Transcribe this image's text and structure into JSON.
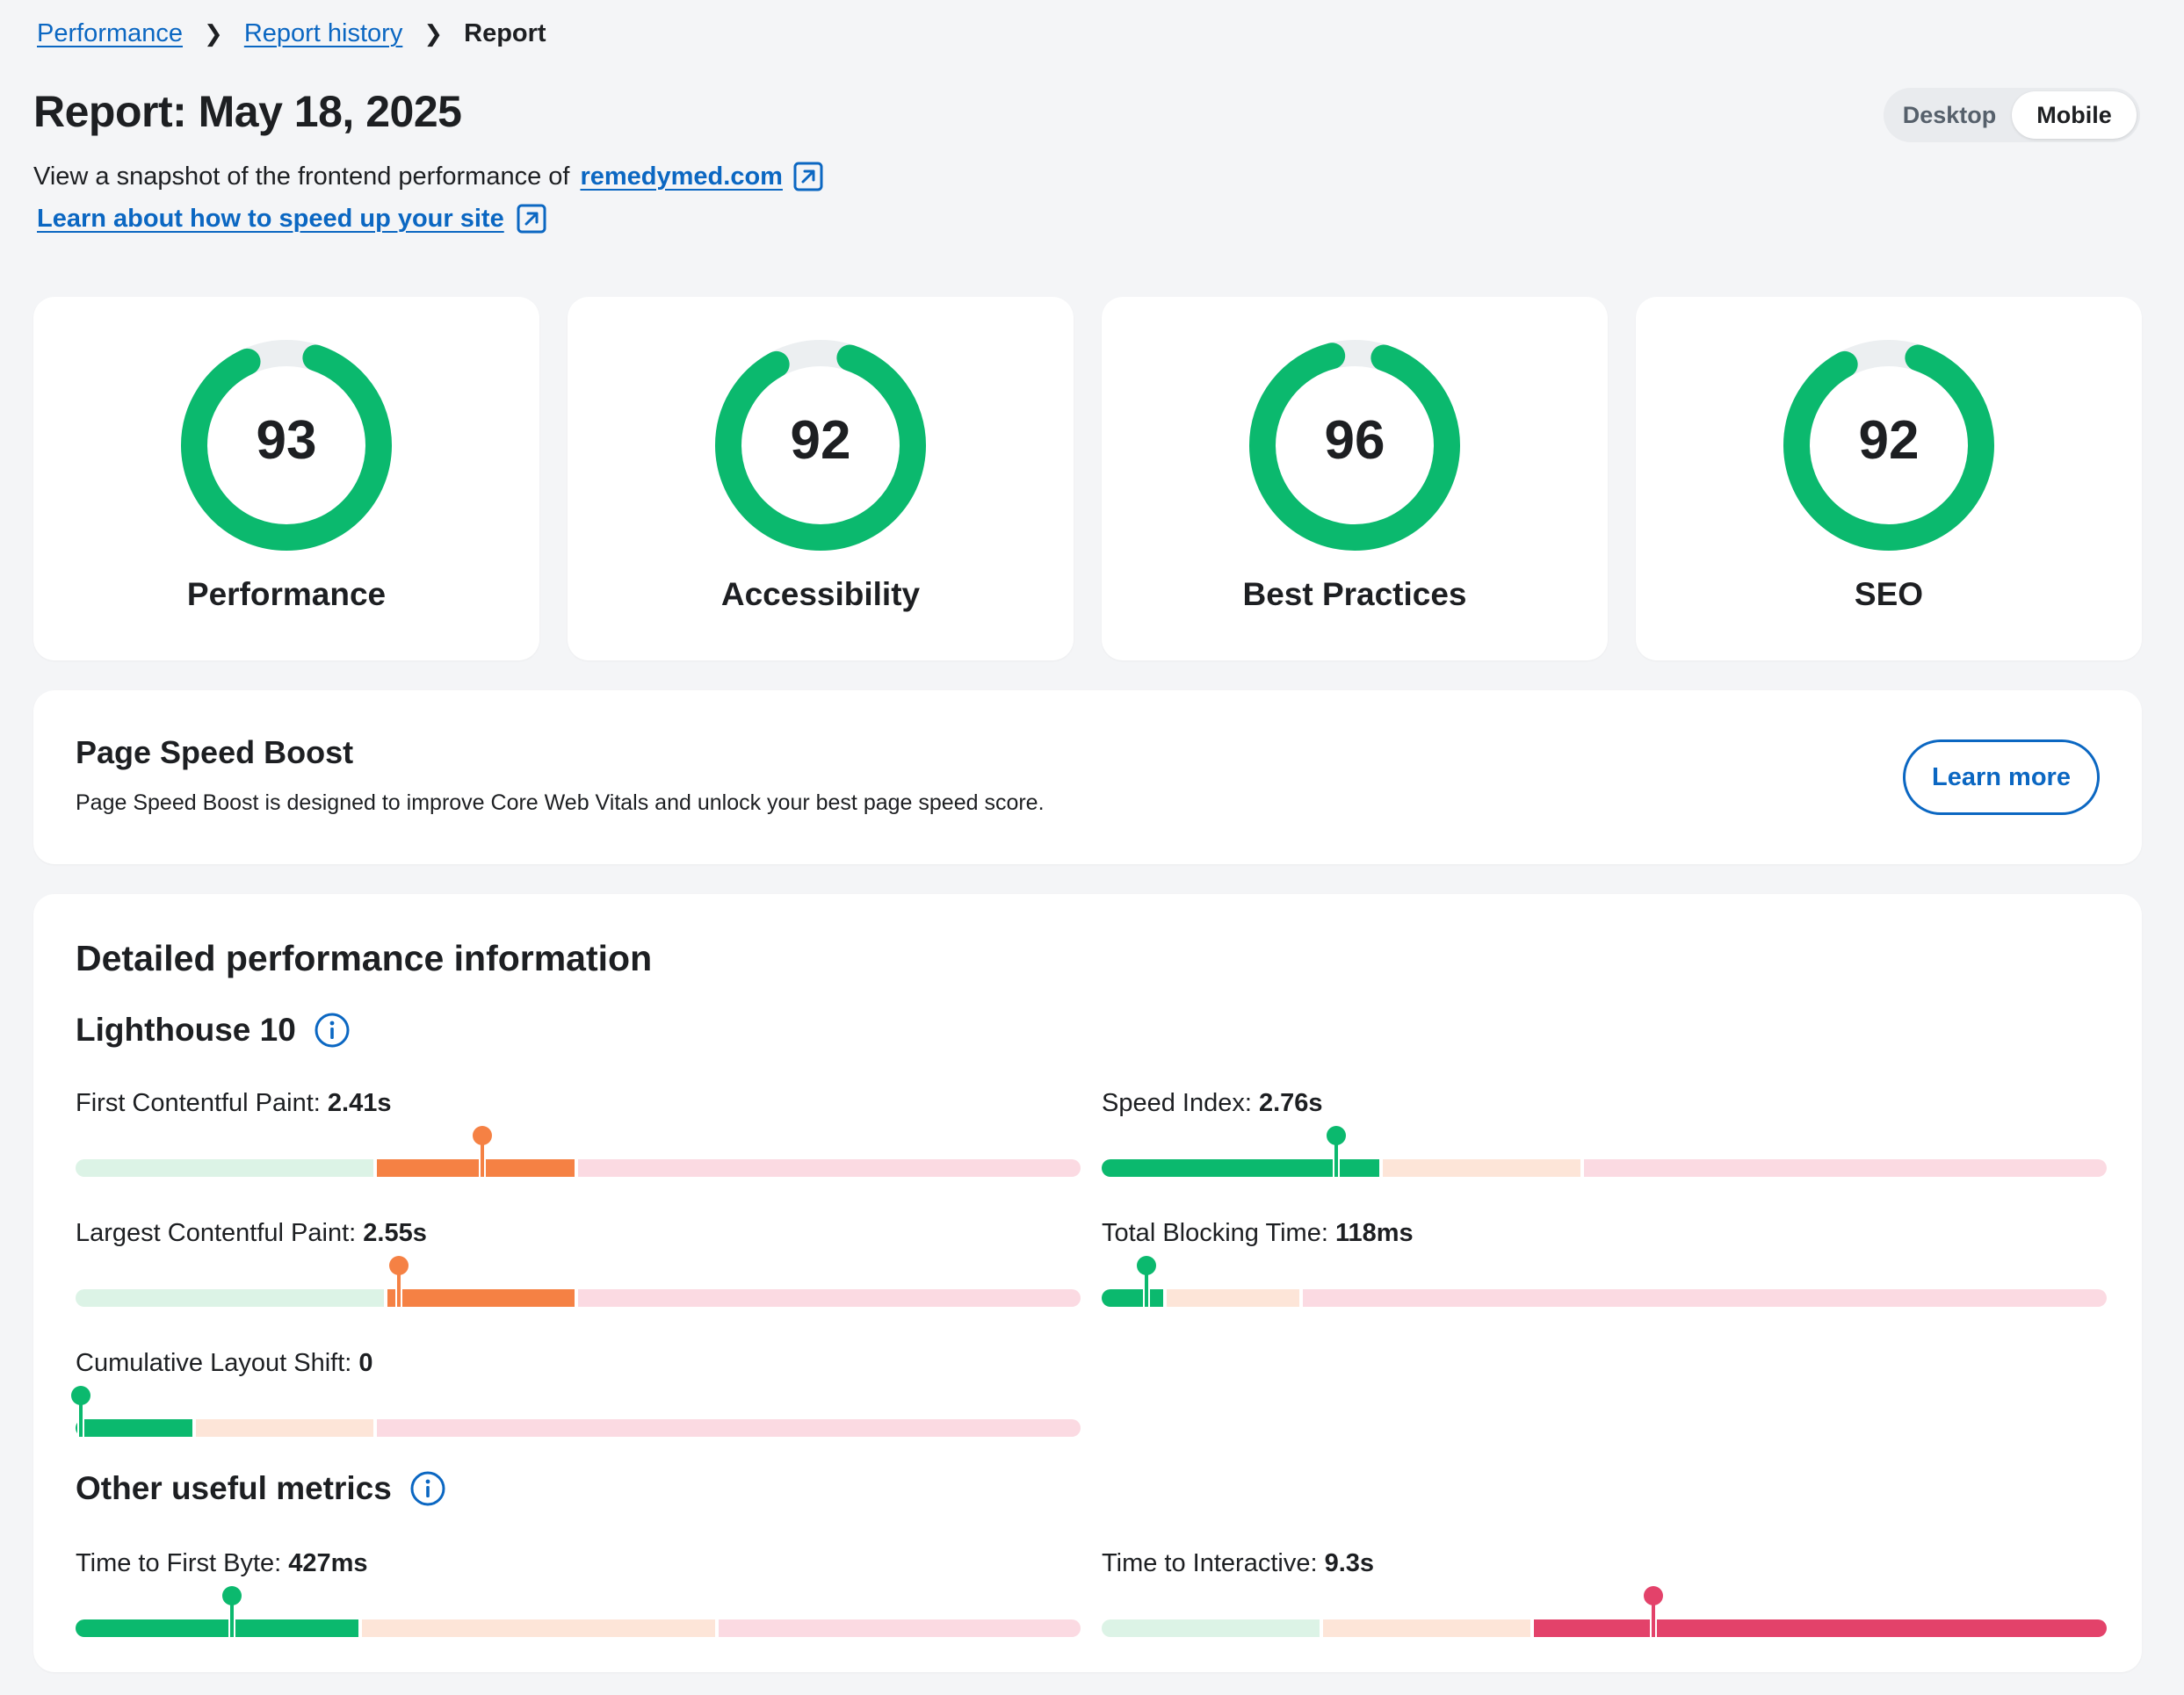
{
  "breadcrumb": {
    "items": [
      "Performance",
      "Report history"
    ],
    "current": "Report"
  },
  "header": {
    "title": "Report: May 18, 2025",
    "snapshot_text": "View a snapshot of the frontend performance of",
    "site_link": "remedymed.com",
    "learn_link": "Learn about how to speed up your site"
  },
  "device_toggle": {
    "options": [
      "Desktop",
      "Mobile"
    ],
    "selected": "Mobile"
  },
  "scores": [
    {
      "label": "Performance",
      "value": 93
    },
    {
      "label": "Accessibility",
      "value": 92
    },
    {
      "label": "Best Practices",
      "value": 96
    },
    {
      "label": "SEO",
      "value": 92
    }
  ],
  "boost": {
    "title": "Page Speed Boost",
    "description": "Page Speed Boost is designed to improve Core Web Vitals and unlock your best page speed score.",
    "button": "Learn more"
  },
  "details": {
    "title": "Detailed performance information",
    "lighthouse_heading": "Lighthouse 10",
    "other_heading": "Other useful metrics",
    "lighthouse_metrics": [
      {
        "label": "First Contentful Paint:",
        "value": "2.41s",
        "status": "average",
        "marker": 0.405
      },
      {
        "label": "Speed Index:",
        "value": "2.76s",
        "status": "good",
        "marker": 0.233
      },
      {
        "label": "Largest Contentful Paint:",
        "value": "2.55s",
        "status": "average",
        "marker": 0.322
      },
      {
        "label": "Total Blocking Time:",
        "value": "118ms",
        "status": "good",
        "marker": 0.045
      },
      {
        "label": "Cumulative Layout Shift:",
        "value": "0",
        "status": "good",
        "marker": 0.005
      }
    ],
    "other_metrics": [
      {
        "label": "Time to First Byte:",
        "value": "427ms",
        "status": "good",
        "marker": 0.156
      },
      {
        "label": "Time to Interactive:",
        "value": "9.3s",
        "status": "poor",
        "marker": 0.549
      }
    ]
  },
  "colors": {
    "good": "#0bb96e",
    "good_light": "#dcf3e6",
    "average": "#f58144",
    "average_light": "#fde5d8",
    "poor": "#e3426a",
    "poor_light": "#fbdae2",
    "link": "#0b67c2",
    "track": "#eceff1"
  }
}
